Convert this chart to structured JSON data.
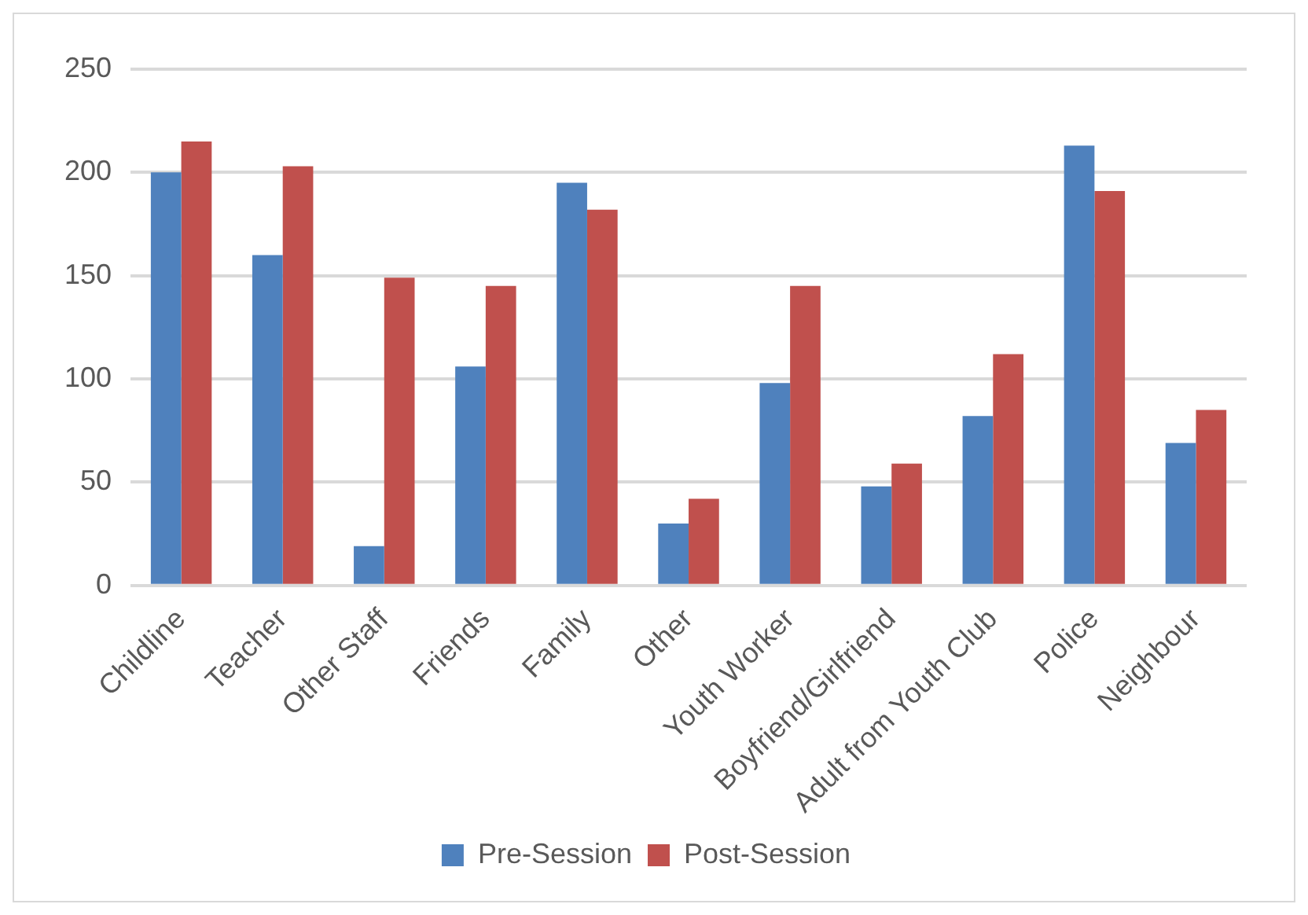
{
  "chart_data": {
    "type": "bar",
    "categories": [
      "Childline",
      "Teacher",
      "Other Staff",
      "Friends",
      "Family",
      "Other",
      "Youth Worker",
      "Boyfriend/Girlfriend",
      "Adult from Youth Club",
      "Police",
      "Neighbour"
    ],
    "series": [
      {
        "name": "Pre-Session",
        "color": "#4f81bd",
        "values": [
          200,
          160,
          19,
          106,
          195,
          30,
          98,
          48,
          82,
          213,
          69
        ]
      },
      {
        "name": "Post-Session",
        "color": "#c0504d",
        "values": [
          215,
          203,
          149,
          145,
          182,
          42,
          145,
          59,
          112,
          191,
          85
        ]
      }
    ],
    "ylim": [
      0,
      250
    ],
    "yticks": [
      0,
      50,
      100,
      150,
      200,
      250
    ],
    "grid": "y",
    "legend": "bottom"
  }
}
